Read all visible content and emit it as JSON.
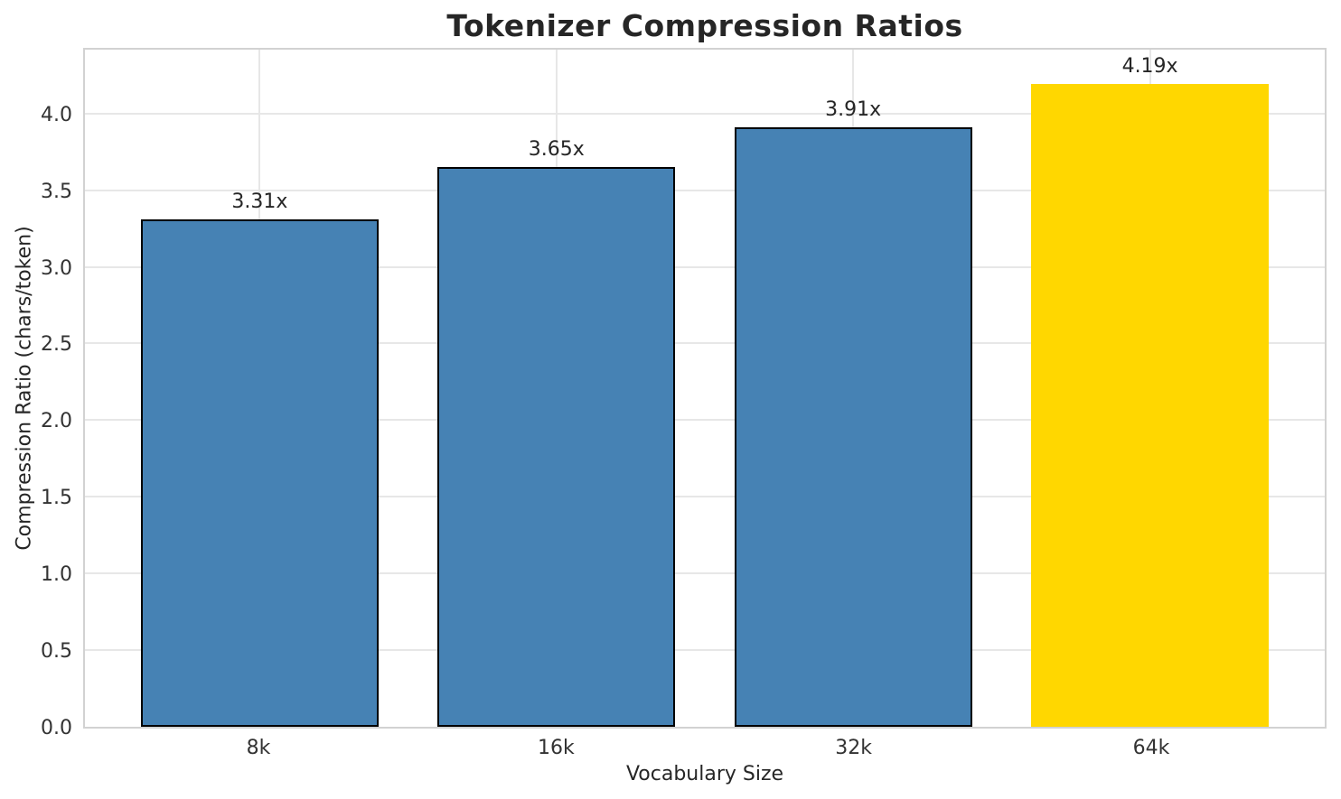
{
  "chart_data": {
    "type": "bar",
    "title": "Tokenizer Compression Ratios",
    "xlabel": "Vocabulary Size",
    "ylabel": "Compression Ratio (chars/token)",
    "categories": [
      "8k",
      "16k",
      "32k",
      "64k"
    ],
    "values": [
      3.31,
      3.65,
      3.91,
      4.19
    ],
    "bar_labels": [
      "3.31x",
      "3.65x",
      "3.91x",
      "4.19x"
    ],
    "bar_colors": [
      "#4682B4",
      "#4682B4",
      "#4682B4",
      "#FFD700"
    ],
    "bar_edge_colors": [
      "#000000",
      "#000000",
      "#000000",
      "#FFD700"
    ],
    "highlight_index": 3,
    "ylim": [
      0,
      4.44
    ],
    "yticks": [
      0.0,
      0.5,
      1.0,
      1.5,
      2.0,
      2.5,
      3.0,
      3.5,
      4.0
    ],
    "ytick_labels": [
      "0.0",
      "0.5",
      "1.0",
      "1.5",
      "2.0",
      "2.5",
      "3.0",
      "3.5",
      "4.0"
    ],
    "grid": true,
    "legend": "none"
  }
}
